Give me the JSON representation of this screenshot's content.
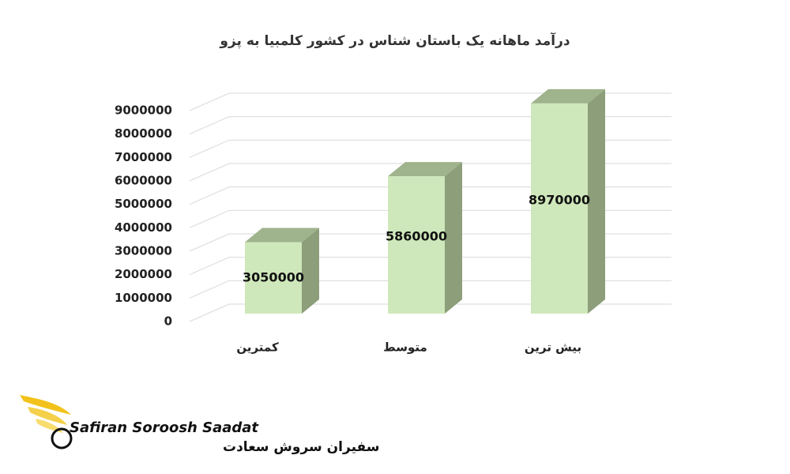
{
  "chart_data": {
    "type": "bar3d",
    "title": "درآمد ماهانه یک باستان شناس در کشور کلمبیا به پزو",
    "categories": [
      "کمترین",
      "متوسط",
      "بیش ترین"
    ],
    "values": [
      3050000,
      5860000,
      8970000
    ],
    "color": "#cfe8bb",
    "ylim": [
      0,
      9000000
    ],
    "yticks": [
      0,
      1000000,
      2000000,
      3000000,
      4000000,
      5000000,
      6000000,
      7000000,
      8000000,
      9000000
    ],
    "grid": true
  },
  "logo": {
    "name_en": "Safiran Soroosh Saadat",
    "name_fa": "سفیران سروش سعادت"
  }
}
